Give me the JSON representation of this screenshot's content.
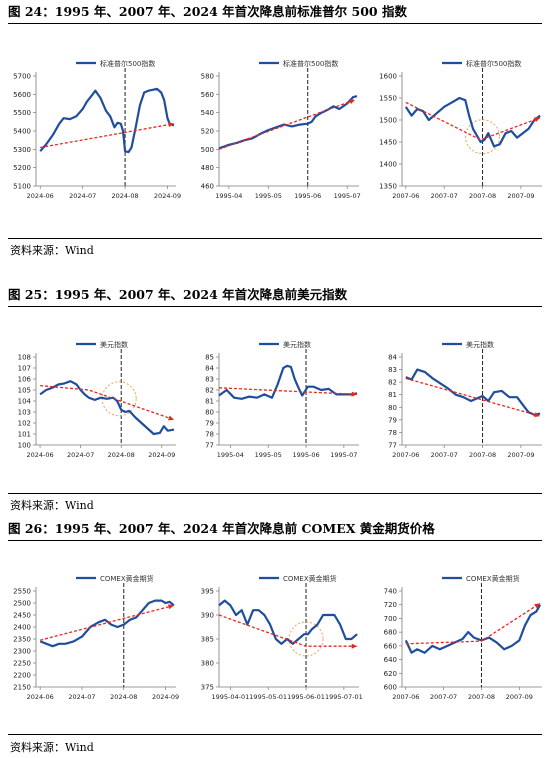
{
  "figures": [
    {
      "title": "图 24：1995 年、2007 年、2024 年首次降息前标准普尔 500 指数",
      "source": "资料来源：Wind"
    },
    {
      "title": "图 25：1995 年、2007 年、2024 年首次降息前美元指数",
      "source": "资料来源：Wind"
    },
    {
      "title": "图 26：1995 年、2007 年、2024 年首次降息前 COMEX 黄金期货价格",
      "source": "资料来源：Wind"
    }
  ],
  "colors": {
    "line": "#1f4e9e",
    "trend": "#e8261c",
    "circle": "#f0a050",
    "axis": "#7a7a7a",
    "vline": "#222222"
  },
  "chart_data": [
    {
      "type": "line",
      "panel": 1,
      "legend": "标准普尔500指数",
      "xlabels": [
        "2024-06",
        "2024-07",
        "2024-08",
        "2024-09"
      ],
      "yticks": [
        5100,
        5200,
        5300,
        5400,
        5500,
        5600,
        5700
      ],
      "ylim": [
        5100,
        5700
      ],
      "vline_x": 2.0,
      "x": [
        0,
        0.15,
        0.3,
        0.45,
        0.55,
        0.7,
        0.85,
        1.0,
        1.1,
        1.2,
        1.3,
        1.42,
        1.55,
        1.65,
        1.75,
        1.82,
        1.9,
        1.95,
        2.0,
        2.08,
        2.15,
        2.25,
        2.35,
        2.45,
        2.55,
        2.65,
        2.75,
        2.85,
        2.92,
        3.0,
        3.05,
        3.1,
        3.15
      ],
      "values": [
        5290,
        5330,
        5380,
        5440,
        5470,
        5465,
        5480,
        5520,
        5560,
        5590,
        5620,
        5580,
        5510,
        5480,
        5420,
        5445,
        5440,
        5400,
        5290,
        5285,
        5310,
        5420,
        5540,
        5610,
        5620,
        5625,
        5630,
        5610,
        5570,
        5470,
        5440,
        5435,
        5430
      ],
      "trend": [
        [
          0,
          5310
        ],
        [
          3.15,
          5440
        ]
      ]
    },
    {
      "type": "line",
      "panel": 2,
      "legend": "标准普尔500指数",
      "xlabels": [
        "1995-04",
        "1995-05",
        "1995-06",
        "1995-07"
      ],
      "yticks": [
        460,
        480,
        500,
        520,
        540,
        560,
        580
      ],
      "ylim": [
        460,
        580
      ],
      "vline_x": 2.0,
      "x": [
        -0.25,
        0,
        0.2,
        0.4,
        0.6,
        0.8,
        1.0,
        1.2,
        1.4,
        1.6,
        1.8,
        2.0,
        2.1,
        2.2,
        2.35,
        2.5,
        2.65,
        2.8,
        3.0,
        3.15,
        3.25
      ],
      "values": [
        501,
        505,
        507,
        510,
        512,
        517,
        521,
        524,
        527,
        525,
        527,
        528,
        530,
        536,
        540,
        543,
        547,
        544,
        550,
        557,
        558
      ],
      "trend": [
        [
          -0.25,
          500
        ],
        [
          3.2,
          554
        ]
      ]
    },
    {
      "type": "line",
      "panel": 3,
      "legend": "标准普尔500指数",
      "xlabels": [
        "2007-06",
        "2007-07",
        "2007-08",
        "2007-09"
      ],
      "yticks": [
        1350,
        1400,
        1450,
        1500,
        1550,
        1600
      ],
      "ylim": [
        1350,
        1600
      ],
      "vline_x": 2.0,
      "x": [
        0,
        0.15,
        0.3,
        0.45,
        0.6,
        0.8,
        1.0,
        1.2,
        1.4,
        1.55,
        1.65,
        1.75,
        1.85,
        1.95,
        2.05,
        2.15,
        2.3,
        2.45,
        2.6,
        2.75,
        2.9,
        3.05,
        3.2,
        3.35,
        3.5
      ],
      "values": [
        1530,
        1510,
        1525,
        1520,
        1500,
        1515,
        1530,
        1540,
        1550,
        1545,
        1510,
        1480,
        1465,
        1450,
        1455,
        1470,
        1440,
        1445,
        1470,
        1475,
        1460,
        1470,
        1480,
        1500,
        1510
      ],
      "trend": [
        [
          0,
          1540
        ],
        [
          1.95,
          1455
        ],
        [
          3.5,
          1505
        ]
      ],
      "circle": {
        "x": 2.0,
        "y": 1462
      }
    },
    {
      "type": "line",
      "panel": 4,
      "legend": "美元指数",
      "xlabels": [
        "2024-06",
        "2024-07",
        "2024-08",
        "2024-09"
      ],
      "yticks": [
        100,
        101,
        102,
        103,
        104,
        105,
        106,
        107,
        108
      ],
      "ylim": [
        100,
        108
      ],
      "vline_x": 2.0,
      "x": [
        0,
        0.15,
        0.3,
        0.45,
        0.6,
        0.75,
        0.9,
        1.0,
        1.1,
        1.2,
        1.35,
        1.5,
        1.65,
        1.8,
        1.9,
        2.0,
        2.1,
        2.2,
        2.35,
        2.5,
        2.65,
        2.8,
        2.95,
        3.05,
        3.15,
        3.3
      ],
      "values": [
        104.6,
        105.0,
        105.2,
        105.5,
        105.6,
        105.8,
        105.5,
        105.0,
        104.6,
        104.3,
        104.1,
        104.3,
        104.2,
        104.3,
        104.0,
        103.2,
        103.0,
        103.1,
        102.5,
        102.0,
        101.5,
        101.0,
        101.1,
        101.7,
        101.3,
        101.4
      ],
      "trend": [
        [
          0,
          105.4
        ],
        [
          1.2,
          105.0
        ],
        [
          3.3,
          102.3
        ]
      ],
      "circle": {
        "x": 1.95,
        "y": 104.2
      }
    },
    {
      "type": "line",
      "panel": 5,
      "legend": "美元指数",
      "xlabels": [
        "1995-04",
        "1995-05",
        "1995-06",
        "1995-07"
      ],
      "yticks": [
        77,
        78,
        79,
        80,
        81,
        82,
        83,
        84,
        85
      ],
      "ylim": [
        77,
        85
      ],
      "vline_x": 2.0,
      "x": [
        -0.3,
        -0.1,
        0.1,
        0.3,
        0.5,
        0.7,
        0.9,
        1.1,
        1.25,
        1.4,
        1.5,
        1.6,
        1.7,
        1.8,
        1.9,
        2.05,
        2.2,
        2.4,
        2.6,
        2.8,
        3.0,
        3.2,
        3.35
      ],
      "values": [
        81.5,
        82.0,
        81.3,
        81.2,
        81.4,
        81.3,
        81.6,
        81.3,
        82.5,
        84.0,
        84.2,
        84.1,
        83.0,
        82.2,
        81.5,
        82.3,
        82.3,
        82.0,
        82.1,
        81.6,
        81.6,
        81.6,
        81.7
      ],
      "trend": [
        [
          -0.3,
          82.2
        ],
        [
          3.35,
          81.6
        ]
      ]
    },
    {
      "type": "line",
      "panel": 6,
      "legend": "美元指数",
      "xlabels": [
        "2007-06",
        "2007-07",
        "2007-08",
        "2007-09"
      ],
      "yticks": [
        77,
        78,
        79,
        80,
        81,
        82,
        83,
        84
      ],
      "ylim": [
        77,
        84
      ],
      "vline_x": 2.0,
      "x": [
        0,
        0.15,
        0.3,
        0.5,
        0.7,
        0.9,
        1.1,
        1.3,
        1.5,
        1.7,
        1.85,
        2.0,
        2.15,
        2.3,
        2.5,
        2.7,
        2.9,
        3.05,
        3.2,
        3.35,
        3.5
      ],
      "values": [
        82.4,
        82.2,
        83.0,
        82.8,
        82.3,
        81.9,
        81.5,
        81.0,
        80.8,
        80.5,
        80.7,
        80.9,
        80.5,
        81.2,
        81.3,
        80.8,
        80.8,
        80.2,
        79.6,
        79.4,
        79.5
      ],
      "trend": [
        [
          0,
          82.3
        ],
        [
          3.5,
          79.3
        ]
      ]
    },
    {
      "type": "line",
      "panel": 7,
      "legend": "COMEX黄金期货",
      "xlabels": [
        "2024-06",
        "2024-07",
        "2024-08",
        "2024-09"
      ],
      "yticks": [
        2150,
        2200,
        2250,
        2300,
        2350,
        2400,
        2450,
        2500,
        2550
      ],
      "ylim": [
        2150,
        2550
      ],
      "vline_x": 2.0,
      "x": [
        0,
        0.15,
        0.3,
        0.45,
        0.6,
        0.8,
        1.0,
        1.2,
        1.4,
        1.55,
        1.7,
        1.85,
        2.0,
        2.15,
        2.3,
        2.45,
        2.6,
        2.75,
        2.9,
        3.0,
        3.1,
        3.2
      ],
      "values": [
        2340,
        2330,
        2320,
        2330,
        2330,
        2340,
        2360,
        2400,
        2420,
        2430,
        2410,
        2400,
        2410,
        2430,
        2440,
        2470,
        2500,
        2510,
        2510,
        2500,
        2505,
        2490
      ],
      "trend": [
        [
          0,
          2345
        ],
        [
          3.2,
          2490
        ]
      ]
    },
    {
      "type": "line",
      "panel": 8,
      "legend": "COMEX黄金期货",
      "xlabels": [
        "1995-04-01",
        "1995-05-01",
        "1995-06-01",
        "1995-07-01"
      ],
      "yticks": [
        375,
        380,
        385,
        390,
        395
      ],
      "ylim": [
        375,
        395
      ],
      "vline_x": 2.0,
      "x": [
        -0.3,
        -0.15,
        0,
        0.15,
        0.3,
        0.45,
        0.6,
        0.75,
        0.9,
        1.05,
        1.2,
        1.35,
        1.5,
        1.65,
        1.8,
        1.95,
        2.05,
        2.15,
        2.3,
        2.45,
        2.6,
        2.75,
        2.9,
        3.05,
        3.2,
        3.35
      ],
      "values": [
        392,
        393,
        392,
        390,
        391,
        388,
        391,
        391,
        390,
        388,
        385,
        384,
        385,
        384,
        385,
        386,
        386,
        387,
        388,
        390,
        390,
        390,
        388,
        385,
        385,
        386
      ],
      "trend": [
        [
          -0.3,
          390
        ],
        [
          2.0,
          383.5
        ],
        [
          3.35,
          383.5
        ]
      ],
      "circle": {
        "x": 2.0,
        "y": 385
      }
    },
    {
      "type": "line",
      "panel": 9,
      "legend": "COMEX黄金期货",
      "xlabels": [
        "2007-06",
        "2007-07",
        "2007-08",
        "2007-09"
      ],
      "yticks": [
        600,
        620,
        640,
        660,
        680,
        700,
        720,
        740
      ],
      "ylim": [
        600,
        740
      ],
      "vline_x": 2.0,
      "x": [
        0,
        0.15,
        0.3,
        0.5,
        0.7,
        0.9,
        1.1,
        1.3,
        1.5,
        1.65,
        1.8,
        2.0,
        2.2,
        2.4,
        2.6,
        2.8,
        3.0,
        3.15,
        3.3,
        3.45,
        3.55
      ],
      "values": [
        668,
        650,
        655,
        650,
        660,
        655,
        660,
        665,
        670,
        680,
        672,
        668,
        672,
        665,
        655,
        660,
        668,
        690,
        705,
        710,
        720
      ],
      "trend": [
        [
          0,
          663
        ],
        [
          2.0,
          667
        ],
        [
          3.55,
          722
        ]
      ]
    }
  ]
}
